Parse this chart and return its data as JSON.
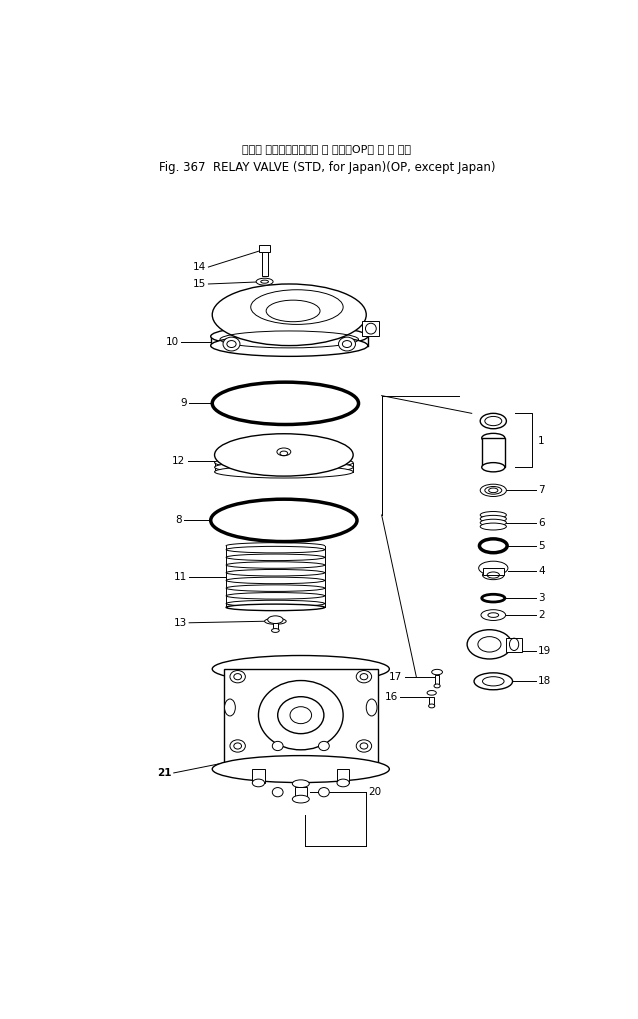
{
  "title_line1": "リレー バルブ（標準，国 内 向）（OP， 海 外 向）",
  "title_line2": "Fig. 367  RELAY VALVE (STD, for Japan)(OP, except Japan)",
  "bg_color": "#ffffff"
}
